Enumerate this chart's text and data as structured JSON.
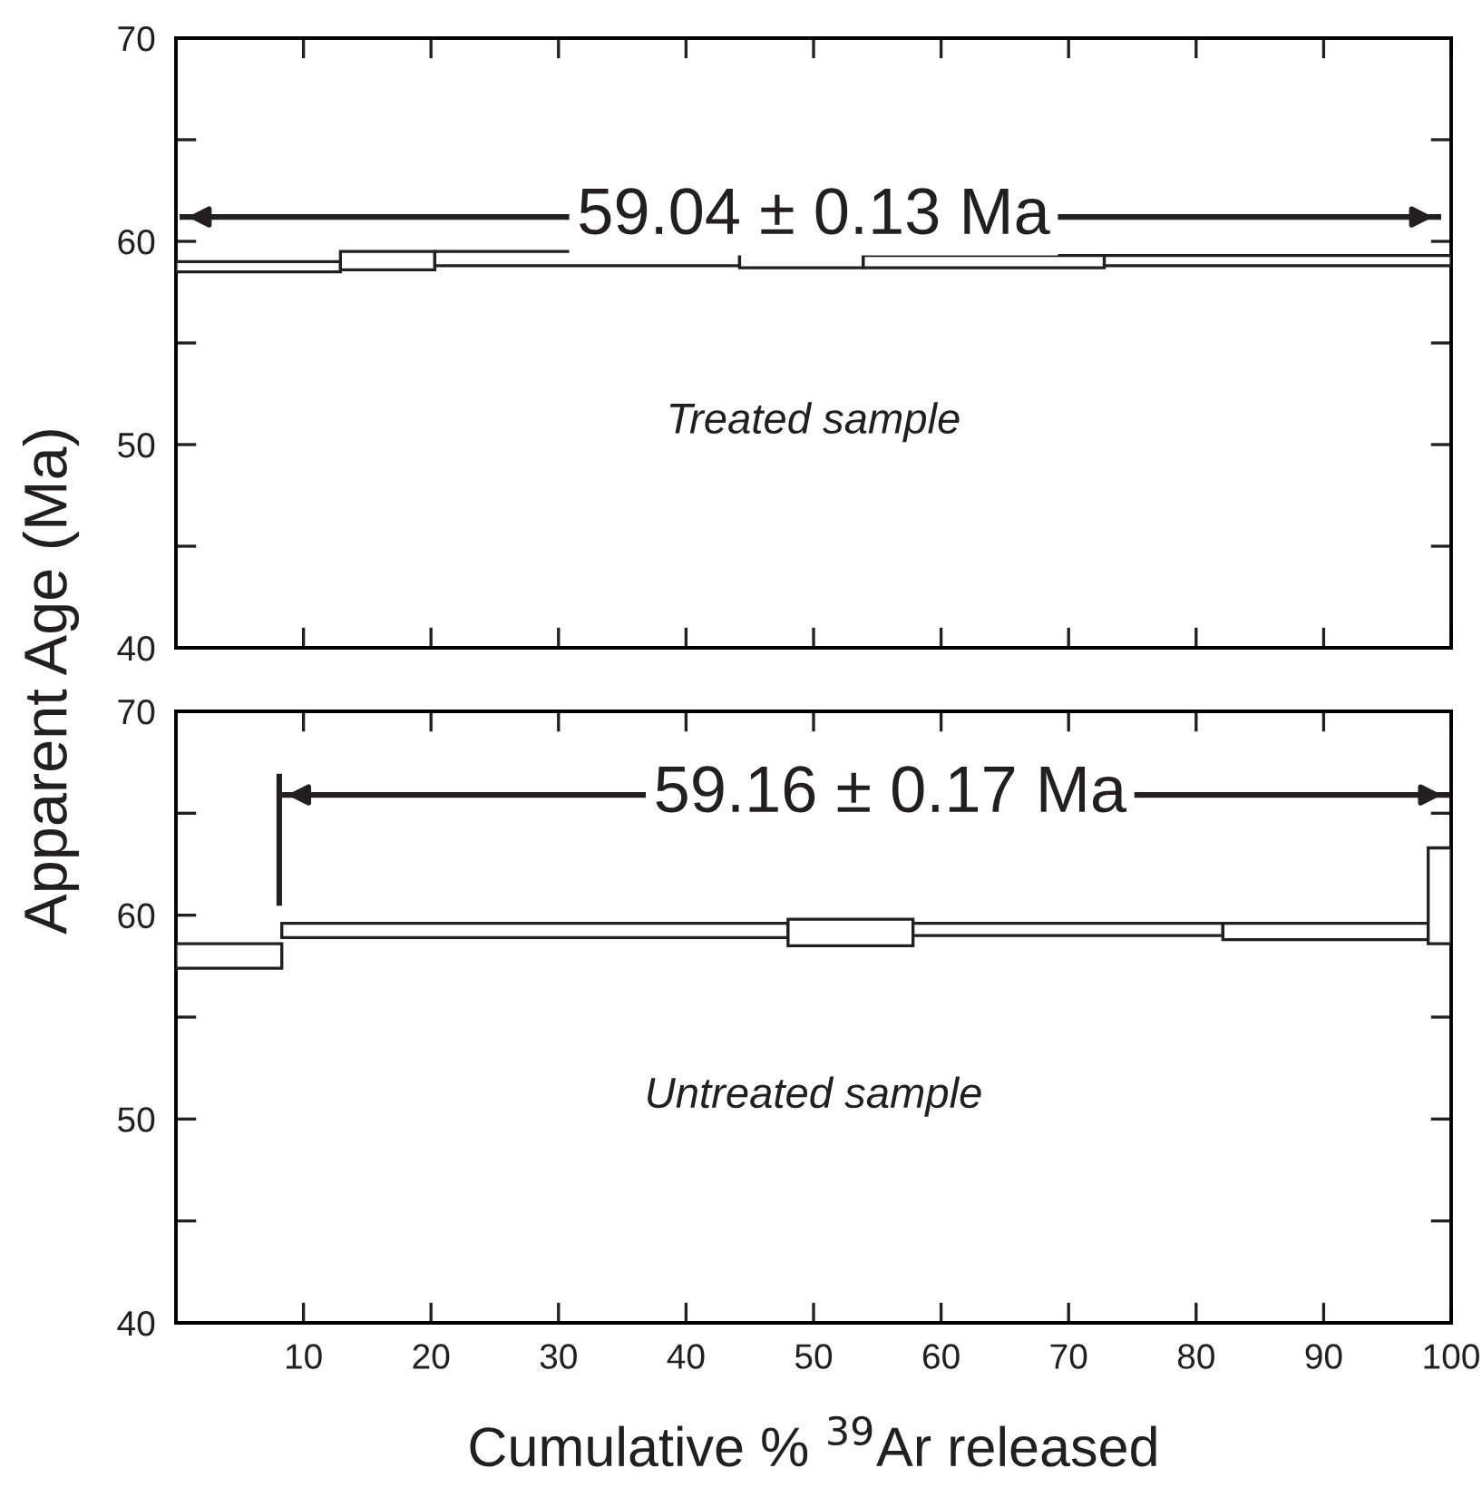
{
  "chart_data": [
    {
      "type": "histogram",
      "ylabel": "Apparent Age (Ma)",
      "tick_labels": "y",
      "bins": [
        0,
        12.9,
        20.3,
        44.2,
        53.9,
        72.8,
        100
      ],
      "base": [
        58.5,
        58.6,
        58.8,
        58.7,
        58.7,
        58.8
      ],
      "values": [
        0.5,
        0.9,
        0.7,
        0.8,
        0.6,
        0.5
      ],
      "color": "#ffffff",
      "series": [
        {
          "type": "line",
          "x": [
            0.5,
            99
          ],
          "values": [
            61.2,
            61.2
          ],
          "color": "#231f20"
        }
      ],
      "annotations": [
        {
          "text": "59.04 ± 0.13 Ma",
          "x": 50,
          "y": 61.2
        },
        "Treated sample"
      ],
      "xlim": [
        0,
        100
      ],
      "xticks": [
        10,
        20,
        30,
        40,
        50,
        60,
        70,
        80,
        90,
        100
      ],
      "ylim": [
        40,
        70
      ],
      "yticks": [
        40,
        {
          "value": 45,
          "label": null
        },
        50,
        {
          "value": 55,
          "label": null
        },
        60,
        {
          "value": 65,
          "label": null
        },
        70
      ],
      "grid": false,
      "legend": false
    },
    {
      "type": "histogram",
      "xlabel": "Cumulative % $^{39}$Ar released",
      "bins": [
        0,
        8.3,
        48.0,
        57.8,
        82.1,
        98.2,
        100
      ],
      "base": [
        57.4,
        58.9,
        58.5,
        59.0,
        58.8,
        58.6
      ],
      "values": [
        1.2,
        0.7,
        1.3,
        0.6,
        0.8,
        4.7
      ],
      "color": "#ffffff",
      "series": [
        {
          "type": "line",
          "x": [
            8.1,
            8.1
          ],
          "values": [
            60.6,
            66.8
          ],
          "color": "#231f20"
        },
        {
          "type": "line",
          "x": [
            8.3,
            99.7
          ],
          "values": [
            65.9,
            65.9
          ],
          "color": "#231f20"
        }
      ],
      "annotations": [
        {
          "text": "59.16 ± 0.17 Ma",
          "x": 56,
          "y": 65.9
        },
        "Untreated sample"
      ],
      "xlim": [
        0,
        100
      ],
      "xticks": [
        10,
        20,
        30,
        40,
        50,
        60,
        70,
        80,
        90,
        100
      ],
      "ylim": [
        40,
        70
      ],
      "yticks": [
        40,
        {
          "value": 45,
          "label": null
        },
        50,
        {
          "value": 55,
          "label": null
        },
        60,
        {
          "value": 65,
          "label": null
        },
        70
      ],
      "grid": false,
      "legend": false
    }
  ]
}
